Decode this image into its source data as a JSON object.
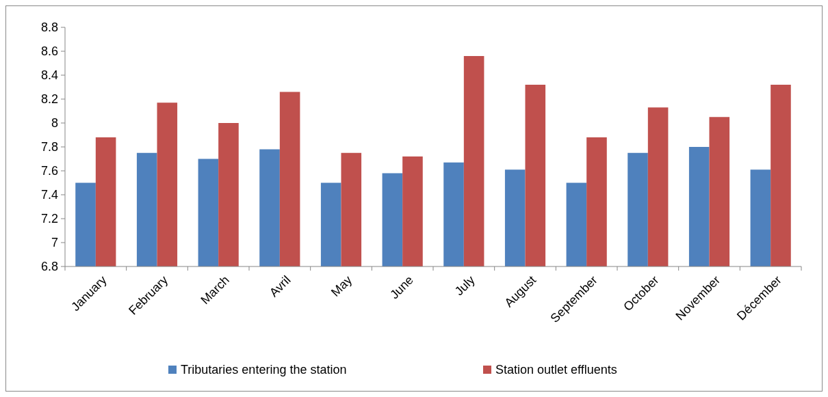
{
  "chart_data": {
    "type": "bar",
    "categories": [
      "January",
      "February",
      "March",
      "Avril",
      "May",
      "June",
      "July",
      "August",
      "September",
      "October",
      "November",
      "Décember"
    ],
    "series": [
      {
        "name": "Tributaries entering the station",
        "color": "#4f81bd",
        "values": [
          7.5,
          7.75,
          7.7,
          7.78,
          7.5,
          7.58,
          7.67,
          7.61,
          7.5,
          7.75,
          7.8,
          7.61
        ]
      },
      {
        "name": "Station outlet effluents",
        "color": "#c0504d",
        "values": [
          7.88,
          8.17,
          8.0,
          8.26,
          7.75,
          7.72,
          8.56,
          8.32,
          7.88,
          8.13,
          8.05,
          8.32
        ]
      }
    ],
    "ylim": [
      6.8,
      8.8
    ],
    "yticks": [
      6.8,
      7,
      7.2,
      7.4,
      7.6,
      7.8,
      8,
      8.2,
      8.4,
      8.6,
      8.8
    ],
    "grid": false,
    "legend": "bottom"
  }
}
